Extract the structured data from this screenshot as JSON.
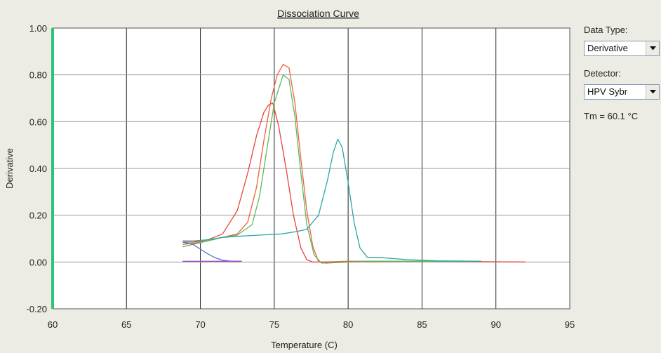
{
  "panel": {
    "data_type_label": "Data Type:",
    "data_type_value": "Derivative",
    "detector_label": "Detector:",
    "detector_value": "HPV Sybr",
    "tm_text": "Tm = 60.1 °C",
    "dropdown_icon": "chevron-down-icon"
  },
  "colors": {
    "plot_background": "#ffffff",
    "window_background": "#ecebe4",
    "left_axis_bar": "#2fc27a",
    "grid": "#222222"
  },
  "chart_data": {
    "type": "line",
    "title": "Dissociation Curve",
    "xlabel": "Temperature (C)",
    "ylabel": "Derivative",
    "xlim": [
      60,
      95
    ],
    "ylim": [
      -0.2,
      1.0
    ],
    "xticks": [
      60,
      65,
      70,
      75,
      80,
      85,
      90,
      95
    ],
    "yticks": [
      -0.2,
      0.0,
      0.2,
      0.4,
      0.6,
      0.8,
      1.0
    ],
    "ytick_labels": [
      "-0.20",
      "0.00",
      "0.20",
      "0.40",
      "0.60",
      "0.80",
      "1.00"
    ],
    "grid": true,
    "series": [
      {
        "color": "#e8443a",
        "x": [
          68.8,
          69.5,
          70.5,
          71.5,
          72.5,
          73.2,
          73.8,
          74.3,
          74.6,
          74.9,
          75.3,
          75.8,
          76.3,
          76.8,
          77.2,
          77.6,
          78.5,
          80,
          85,
          90,
          92
        ],
        "y": [
          0.085,
          0.085,
          0.095,
          0.12,
          0.22,
          0.38,
          0.54,
          0.64,
          0.67,
          0.68,
          0.58,
          0.4,
          0.2,
          0.06,
          0.01,
          0.0,
          0.0,
          0.003,
          0.003,
          0.001,
          0.0
        ]
      },
      {
        "color": "#f0603f",
        "x": [
          68.8,
          69.5,
          70.5,
          71.5,
          72.5,
          73.2,
          73.8,
          74.3,
          74.8,
          75.2,
          75.6,
          76.0,
          76.4,
          76.8,
          77.2,
          77.6,
          78.0,
          78.5,
          80,
          85,
          89
        ],
        "y": [
          0.075,
          0.08,
          0.09,
          0.105,
          0.12,
          0.17,
          0.32,
          0.52,
          0.7,
          0.8,
          0.845,
          0.83,
          0.68,
          0.44,
          0.22,
          0.07,
          0.0,
          -0.005,
          0.0,
          0.003,
          0.003
        ]
      },
      {
        "color": "#5cb85a",
        "x": [
          68.8,
          69.5,
          70.5,
          71.5,
          72.5,
          73.5,
          74.0,
          74.5,
          75.0,
          75.6,
          76.0,
          76.4,
          76.8,
          77.2,
          77.7,
          78.2,
          79,
          82,
          86,
          88
        ],
        "y": [
          0.065,
          0.075,
          0.09,
          0.105,
          0.115,
          0.16,
          0.28,
          0.48,
          0.68,
          0.8,
          0.78,
          0.62,
          0.38,
          0.16,
          0.03,
          -0.005,
          0.0,
          0.003,
          0.003,
          0.003
        ]
      },
      {
        "color": "#2aa7a3",
        "x": [
          68.8,
          69.5,
          70.5,
          71.5,
          72.5,
          74,
          75.5,
          76.5,
          77.2,
          78.0,
          78.6,
          79.0,
          79.3,
          79.6,
          80.0,
          80.4,
          80.8,
          81.3,
          82,
          84,
          86,
          89
        ],
        "y": [
          0.09,
          0.09,
          0.095,
          0.105,
          0.11,
          0.115,
          0.12,
          0.13,
          0.14,
          0.2,
          0.35,
          0.47,
          0.525,
          0.49,
          0.34,
          0.17,
          0.06,
          0.02,
          0.02,
          0.01,
          0.005,
          0.003
        ]
      },
      {
        "color": "#5b6fd6",
        "x": [
          68.8,
          69.5,
          70.0,
          70.5,
          71.0,
          71.5,
          72.0,
          72.8
        ],
        "y": [
          0.085,
          0.075,
          0.055,
          0.035,
          0.018,
          0.008,
          0.004,
          0.003
        ]
      },
      {
        "color": "#9b4fc8",
        "x": [
          68.8,
          72.8
        ],
        "y": [
          0.003,
          0.003
        ]
      }
    ]
  }
}
